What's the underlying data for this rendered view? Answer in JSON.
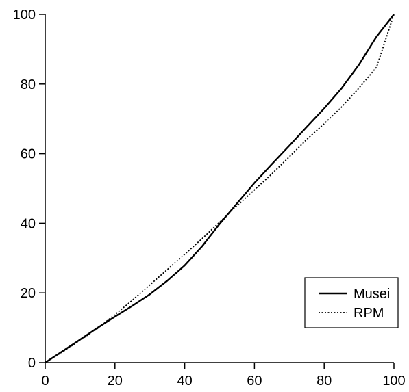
{
  "chart_data": {
    "type": "line",
    "title": "",
    "xlabel": "",
    "ylabel": "",
    "xlim": [
      0,
      100
    ],
    "ylim": [
      0,
      100
    ],
    "x_ticks": [
      0,
      20,
      40,
      60,
      80,
      100
    ],
    "y_ticks": [
      0,
      20,
      40,
      60,
      80,
      100
    ],
    "grid": false,
    "legend_position": "bottom-right",
    "series": [
      {
        "name": "Musei",
        "style": "solid",
        "color": "#000000",
        "x": [
          0,
          5,
          10,
          15,
          20,
          25,
          30,
          35,
          40,
          45,
          50,
          55,
          60,
          65,
          70,
          75,
          80,
          85,
          90,
          95,
          100
        ],
        "y": [
          0,
          3.3,
          6.6,
          10,
          13.2,
          16.3,
          19.6,
          23.5,
          27.9,
          33.4,
          39.8,
          45.7,
          51.6,
          57,
          62.3,
          67.7,
          73,
          78.8,
          85.6,
          93.6,
          100
        ]
      },
      {
        "name": "RPM",
        "style": "dotted",
        "color": "#000000",
        "x": [
          0,
          5,
          10,
          15,
          20,
          25,
          30,
          35,
          40,
          45,
          50,
          55,
          60,
          65,
          70,
          75,
          80,
          85,
          90,
          95,
          100
        ],
        "y": [
          0,
          3.1,
          6.4,
          9.8,
          13.8,
          17.9,
          22.3,
          26.7,
          31.1,
          35.6,
          40.3,
          45,
          49.6,
          54.2,
          59.1,
          64.1,
          68.6,
          73.4,
          78.9,
          84.8,
          100
        ]
      }
    ]
  }
}
